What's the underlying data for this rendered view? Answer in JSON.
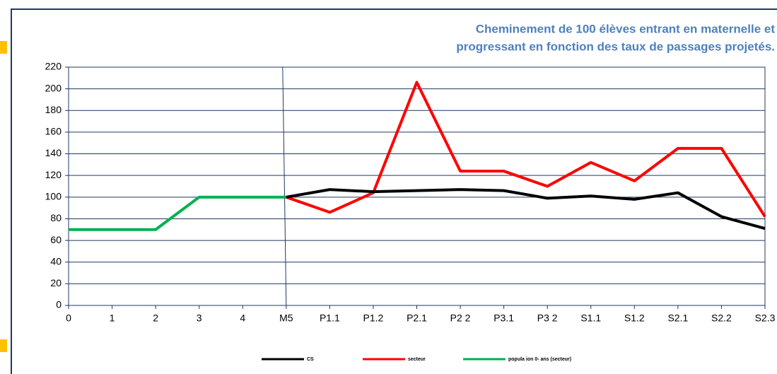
{
  "chart_data": {
    "type": "line",
    "title": [
      "Cheminement de 100 élèves entrant en maternelle et",
      "progressant en fonction des taux de passages projetés."
    ],
    "categories": [
      "0",
      "1",
      "2",
      "3",
      "4",
      "M5",
      "P1.1",
      "P1.2",
      "P2.1",
      "P2 2",
      "P3.1",
      "P3 2",
      "S1.1",
      "S1.2",
      "S2.1",
      "S2.2",
      "S2.3"
    ],
    "series": [
      {
        "name": "CS",
        "color": "#000000",
        "values": [
          null,
          null,
          null,
          null,
          null,
          100,
          107,
          105,
          106,
          107,
          106,
          99,
          101,
          98,
          104,
          82,
          71
        ]
      },
      {
        "name": "secteur",
        "color": "#ff0000",
        "values": [
          null,
          null,
          null,
          null,
          null,
          100,
          86,
          104,
          206,
          124,
          124,
          110,
          132,
          115,
          145,
          145,
          82
        ]
      },
      {
        "name": "popula ion 0-  ans (secteur)",
        "color": "#00b050",
        "values": [
          70,
          70,
          70,
          100,
          100,
          100,
          null,
          null,
          null,
          null,
          null,
          null,
          null,
          null,
          null,
          null,
          null
        ]
      }
    ],
    "ylim": [
      0,
      220
    ],
    "yticks": [
      0,
      20,
      40,
      60,
      80,
      100,
      120,
      140,
      160,
      180,
      200,
      220
    ],
    "grid": true
  }
}
